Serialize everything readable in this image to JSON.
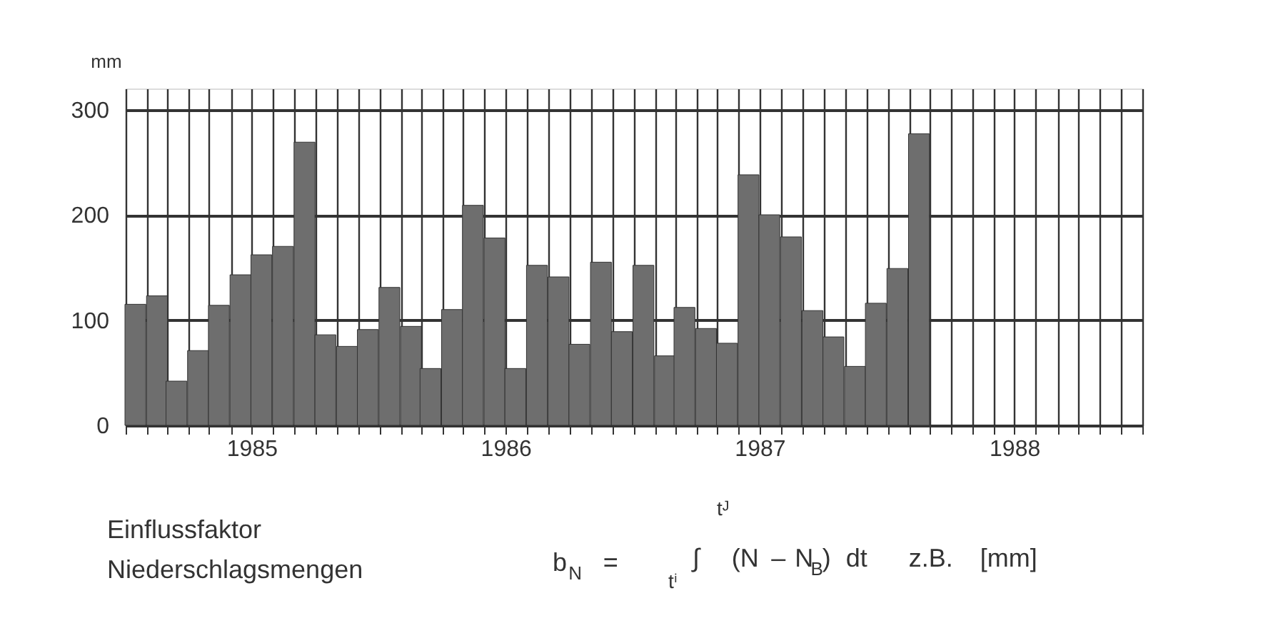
{
  "chart_data": {
    "type": "bar",
    "ylabel": "mm",
    "x": [
      "1985-01-15",
      "1985-02-15",
      "1985-03-15",
      "1985-04-15",
      "1985-05-15",
      "1985-06-15",
      "1985-07-15",
      "1985-08-15",
      "1985-09-15",
      "1985-10-15",
      "1985-11-15",
      "1985-12-15",
      "1986-01-15",
      "1986-02-15",
      "1986-03-15",
      "1986-04-15",
      "1986-05-15",
      "1986-06-15",
      "1986-07-15",
      "1986-08-15",
      "1986-09-15",
      "1986-10-15",
      "1986-11-15",
      "1986-12-15",
      "1987-01-15",
      "1987-02-15",
      "1987-03-15",
      "1987-04-15",
      "1987-05-15",
      "1987-06-15",
      "1987-07-15",
      "1987-08-15",
      "1987-09-15",
      "1987-10-15",
      "1987-11-15",
      "1987-12-15",
      "1988-01-15",
      "1988-02-15"
    ],
    "values": [
      115,
      123,
      42,
      71,
      114,
      143,
      162,
      170,
      269,
      86,
      75,
      91,
      131,
      94,
      54,
      110,
      209,
      178,
      54,
      152,
      141,
      77,
      155,
      89,
      152,
      66,
      112,
      92,
      78,
      238,
      200,
      179,
      109,
      84,
      56,
      116,
      149,
      277
    ],
    "color": "#6e6e6e",
    "xlim": [
      "1985-01",
      "1989-01"
    ],
    "xticks": [
      {
        "value": "1985-01",
        "label": null
      },
      {
        "value": "1985-02",
        "label": null
      },
      {
        "value": "1985-03",
        "label": null
      },
      {
        "value": "1985-04",
        "label": null
      },
      {
        "value": "1985-05",
        "label": null
      },
      {
        "value": "1985-06",
        "label": null
      },
      {
        "value": "1985-07",
        "label": "1985"
      },
      {
        "value": "1985-08",
        "label": null
      },
      {
        "value": "1985-09",
        "label": null
      },
      {
        "value": "1985-10",
        "label": null
      },
      {
        "value": "1985-11",
        "label": null
      },
      {
        "value": "1985-12",
        "label": null
      },
      {
        "value": "1986-01",
        "label": null
      },
      {
        "value": "1986-02",
        "label": null
      },
      {
        "value": "1986-03",
        "label": null
      },
      {
        "value": "1986-04",
        "label": null
      },
      {
        "value": "1986-05",
        "label": null
      },
      {
        "value": "1986-06",
        "label": null
      },
      {
        "value": "1986-07",
        "label": "1986"
      },
      {
        "value": "1986-08",
        "label": null
      },
      {
        "value": "1986-09",
        "label": null
      },
      {
        "value": "1986-10",
        "label": null
      },
      {
        "value": "1986-11",
        "label": null
      },
      {
        "value": "1986-12",
        "label": null
      },
      {
        "value": "1987-01",
        "label": null
      },
      {
        "value": "1987-02",
        "label": null
      },
      {
        "value": "1987-03",
        "label": null
      },
      {
        "value": "1987-04",
        "label": null
      },
      {
        "value": "1987-05",
        "label": null
      },
      {
        "value": "1987-06",
        "label": null
      },
      {
        "value": "1987-07",
        "label": "1987"
      },
      {
        "value": "1987-08",
        "label": null
      },
      {
        "value": "1987-09",
        "label": null
      },
      {
        "value": "1987-10",
        "label": null
      },
      {
        "value": "1987-11",
        "label": null
      },
      {
        "value": "1987-12",
        "label": null
      },
      {
        "value": "1988-01",
        "label": null
      },
      {
        "value": "1988-02",
        "label": null
      },
      {
        "value": "1988-03",
        "label": null
      },
      {
        "value": "1988-04",
        "label": null
      },
      {
        "value": "1988-05",
        "label": null
      },
      {
        "value": "1988-06",
        "label": null
      },
      {
        "value": "1988-07",
        "label": "1988"
      },
      {
        "value": "1988-08",
        "label": null
      },
      {
        "value": "1988-09",
        "label": null
      },
      {
        "value": "1988-10",
        "label": null
      },
      {
        "value": "1988-11",
        "label": null
      },
      {
        "value": "1988-12",
        "label": null
      },
      {
        "value": "1989-01",
        "label": null
      }
    ],
    "ylim": [
      0,
      320
    ],
    "yticks": [
      0,
      100,
      200,
      300
    ],
    "grid": true,
    "annotations": [
      "Einflussfaktor",
      "Niederschlagsmengen",
      "b$_{N}$   =",
      "tᴶ",
      "tⁱ",
      "∫   (N – N$_{B}$) dt    z.B. [mm]"
    ]
  }
}
